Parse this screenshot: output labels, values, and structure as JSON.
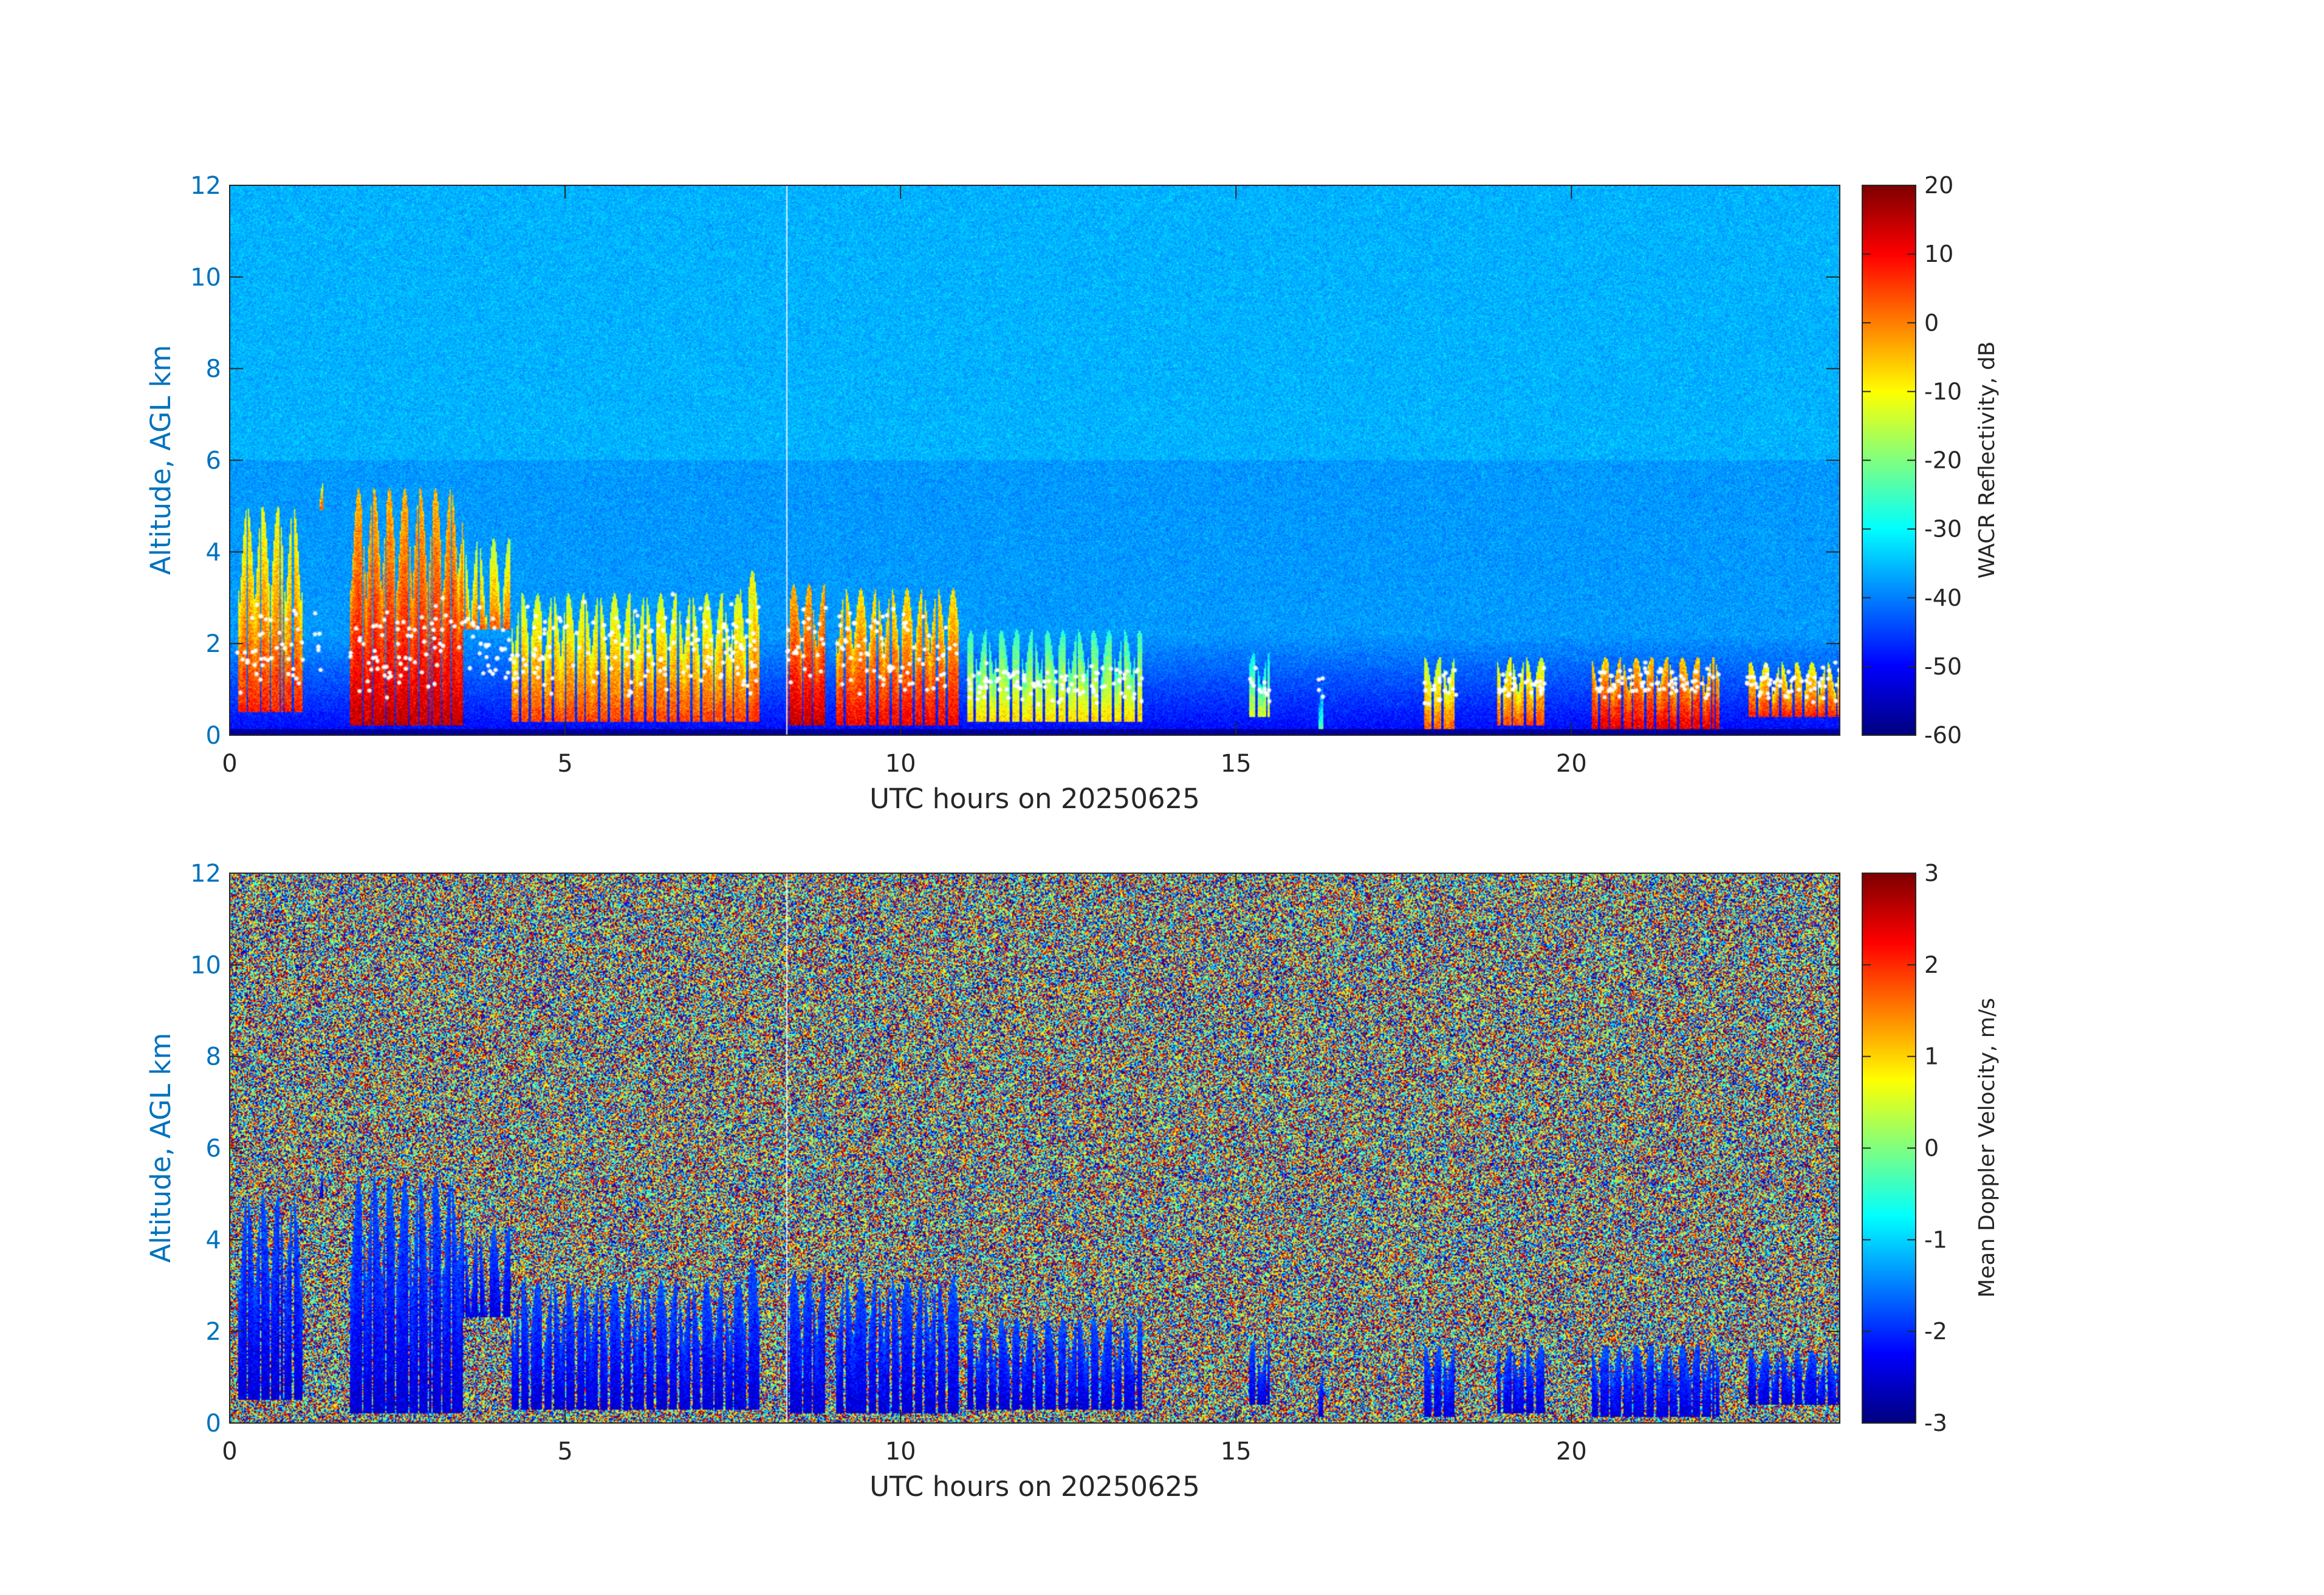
{
  "chart_data": [
    {
      "type": "heatmap",
      "title": "",
      "xlabel": "UTC hours on 20250625",
      "ylabel": "Altitude, AGL km",
      "xlim": [
        0,
        24
      ],
      "ylim": [
        0,
        12
      ],
      "xticks": [
        "0",
        "5",
        "10",
        "15",
        "20"
      ],
      "yticks": [
        "0",
        "2",
        "4",
        "6",
        "8",
        "10",
        "12"
      ],
      "colorbar": {
        "label": "WACR Reflectivity, dB",
        "range": [
          -60,
          20
        ],
        "ticks": [
          "-60",
          "-50",
          "-40",
          "-30",
          "-20",
          "-10",
          "0",
          "10",
          "20"
        ],
        "colormap": "jet"
      },
      "background_value_db": -38,
      "near_surface_value_db": -58,
      "cloud_base_markers": "white dots at cloud base (~0.8-2.0 km)",
      "cloud_features": [
        {
          "t0": 0.1,
          "t1": 1.1,
          "base_km": 0.5,
          "top_km": 5.0,
          "peak_db": 5
        },
        {
          "t0": 1.25,
          "t1": 1.4,
          "base_km": 4.9,
          "top_km": 5.5,
          "peak_db": 3
        },
        {
          "t0": 1.8,
          "t1": 3.5,
          "base_km": 0.2,
          "top_km": 5.4,
          "peak_db": 12
        },
        {
          "t0": 3.4,
          "t1": 4.2,
          "base_km": 2.3,
          "top_km": 4.3,
          "peak_db": 0
        },
        {
          "t0": 4.2,
          "t1": 7.8,
          "base_km": 0.3,
          "top_km": 3.1,
          "peak_db": 2
        },
        {
          "t0": 7.6,
          "t1": 7.9,
          "base_km": 0.3,
          "top_km": 3.6,
          "peak_db": 5
        },
        {
          "t0": 8.3,
          "t1": 8.9,
          "base_km": 0.2,
          "top_km": 3.3,
          "peak_db": 12
        },
        {
          "t0": 9.0,
          "t1": 10.9,
          "base_km": 0.2,
          "top_km": 3.2,
          "peak_db": 8
        },
        {
          "t0": 11.0,
          "t1": 13.6,
          "base_km": 0.3,
          "top_km": 2.3,
          "peak_db": -10
        },
        {
          "t0": 15.2,
          "t1": 15.5,
          "base_km": 0.4,
          "top_km": 1.8,
          "peak_db": -15
        },
        {
          "t0": 16.2,
          "t1": 16.3,
          "base_km": 0.1,
          "top_km": 1.3,
          "peak_db": -25
        },
        {
          "t0": 17.8,
          "t1": 18.3,
          "base_km": 0.1,
          "top_km": 1.7,
          "peak_db": 0
        },
        {
          "t0": 18.9,
          "t1": 19.6,
          "base_km": 0.2,
          "top_km": 1.7,
          "peak_db": 2
        },
        {
          "t0": 20.3,
          "t1": 22.2,
          "base_km": 0.1,
          "top_km": 1.7,
          "peak_db": 10
        },
        {
          "t0": 22.6,
          "t1": 24.0,
          "base_km": 0.4,
          "top_km": 1.6,
          "peak_db": 5
        }
      ],
      "data_gap_hour": 8.3
    },
    {
      "type": "heatmap",
      "title": "",
      "xlabel": "UTC hours on 20250625",
      "ylabel": "Altitude, AGL km",
      "xlim": [
        0,
        24
      ],
      "ylim": [
        0,
        12
      ],
      "xticks": [
        "0",
        "5",
        "10",
        "15",
        "20"
      ],
      "yticks": [
        "0",
        "2",
        "4",
        "6",
        "8",
        "10",
        "12"
      ],
      "colorbar": {
        "label": "Mean Doppler Velocity, m/s",
        "range": [
          -3,
          3
        ],
        "ticks": [
          "-3",
          "-2",
          "-1",
          "0",
          "1",
          "2",
          "3"
        ],
        "colormap": "jet"
      },
      "background": "random noise spanning full range",
      "cloud_velocity_m_s": [
        -2.5,
        -0.8
      ],
      "data_gap_hour": 8.3
    }
  ],
  "colors": {
    "axis_label": "#0072BD",
    "tick_label": "#262626",
    "axis_line": "#262626"
  }
}
